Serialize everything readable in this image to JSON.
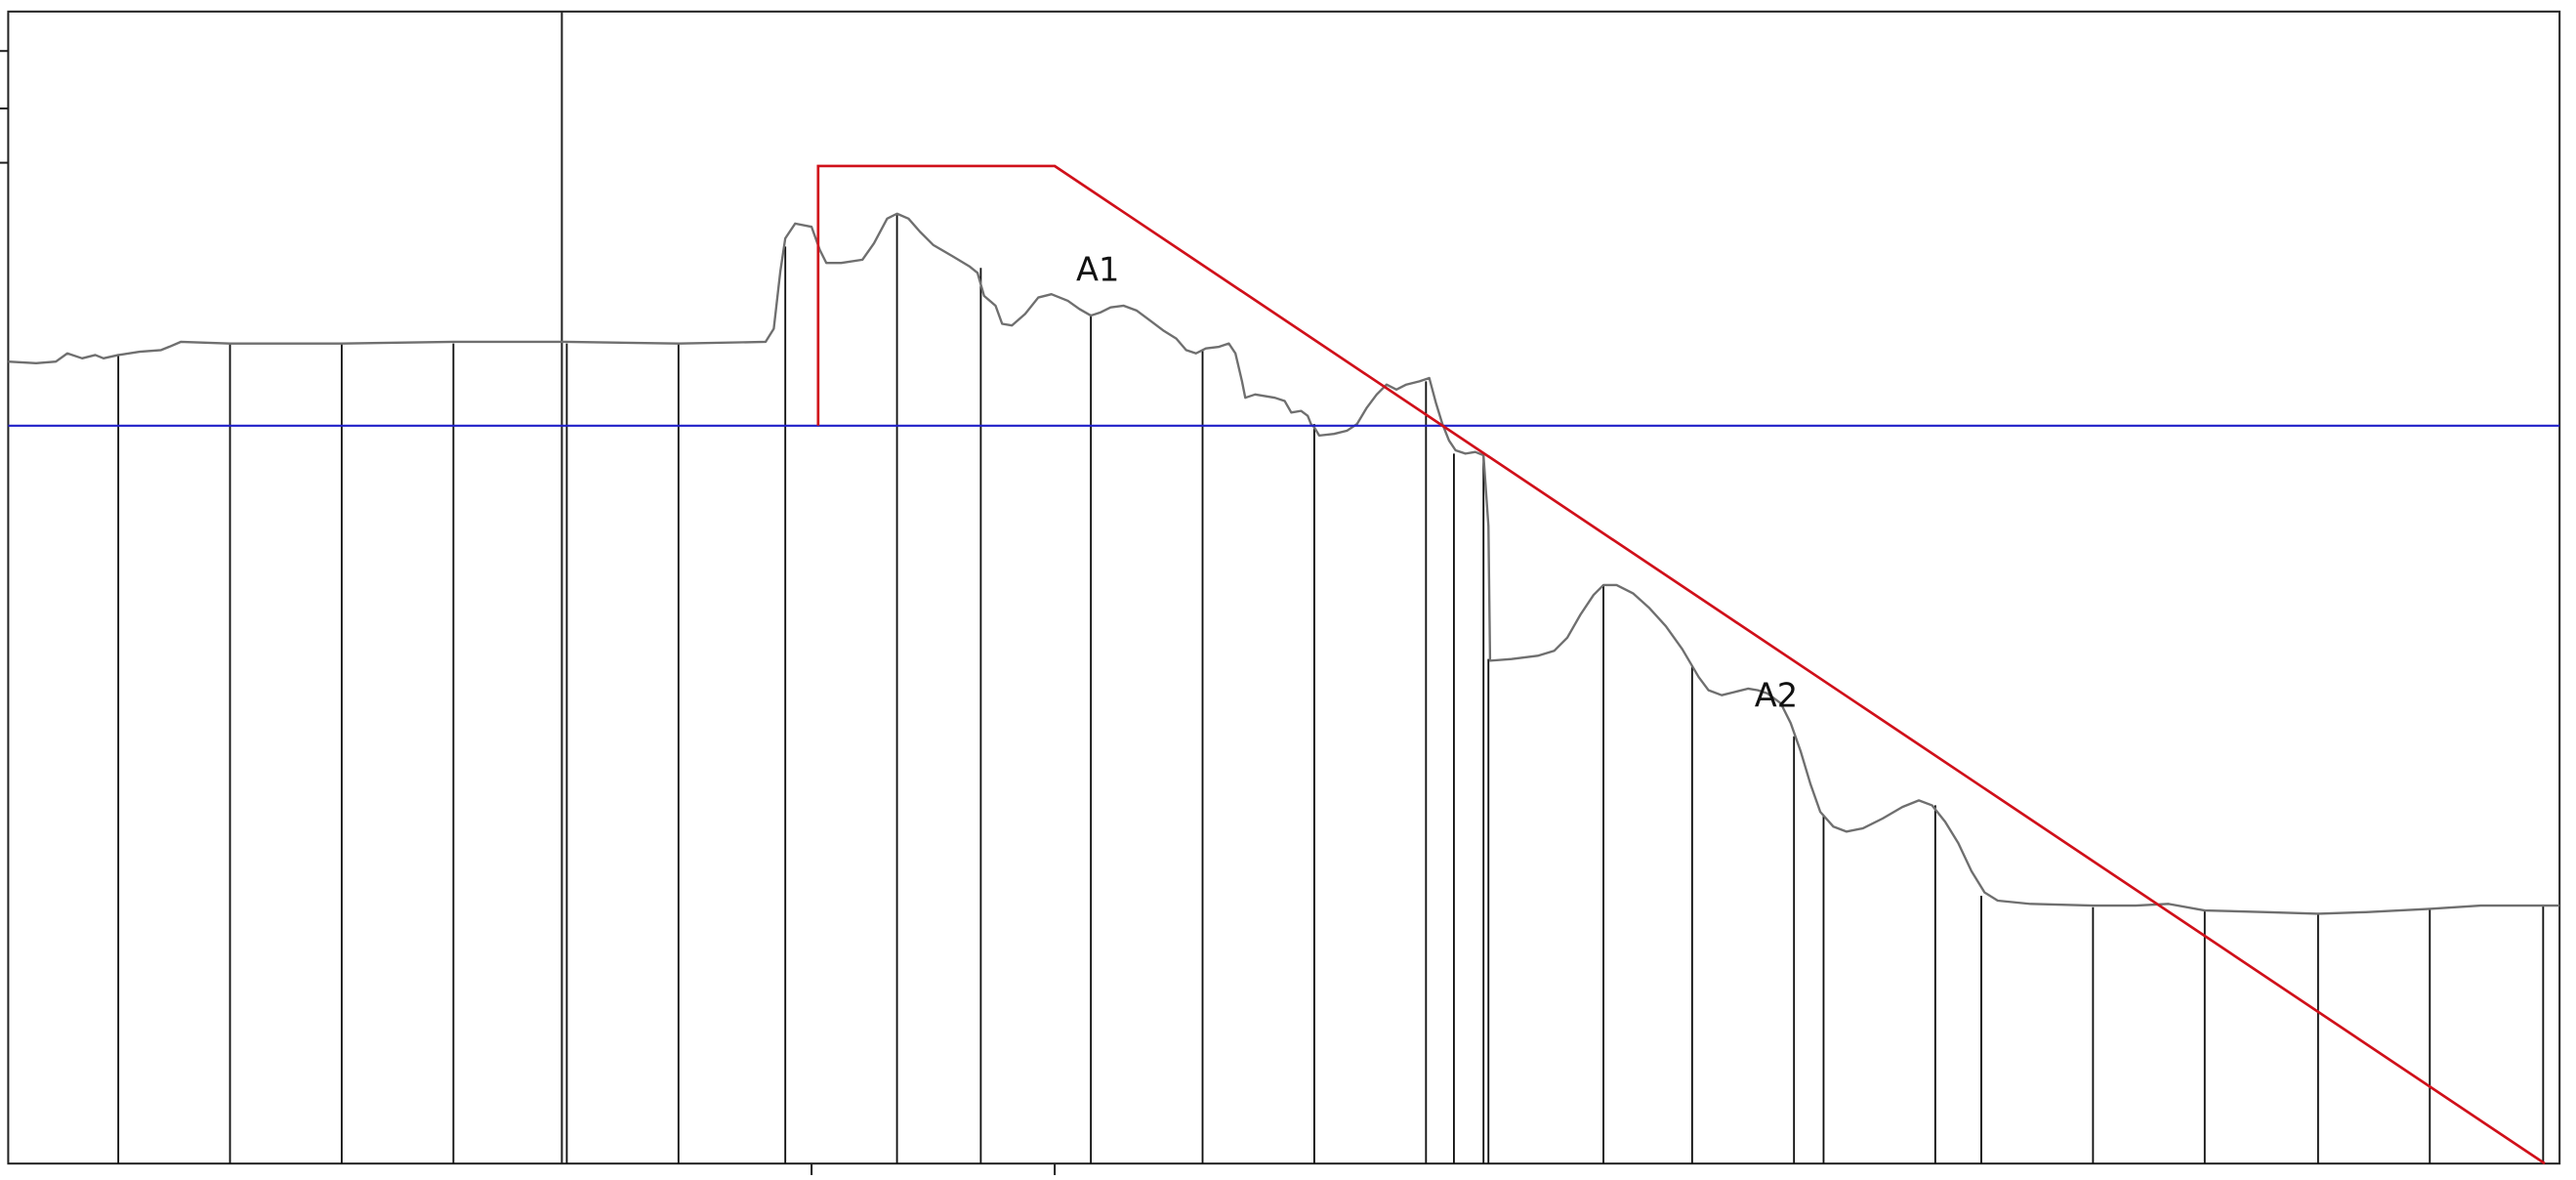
{
  "diagram": {
    "type": "terrain-profile",
    "labels": [
      {
        "text": "A1"
      },
      {
        "text": "A2"
      }
    ],
    "colors": {
      "frame": "#222222",
      "terrain": "#6f6f6f",
      "verticals": "#111111",
      "horizontal_line": "#1f1fc8",
      "red_profile": "#d0101a"
    }
  }
}
